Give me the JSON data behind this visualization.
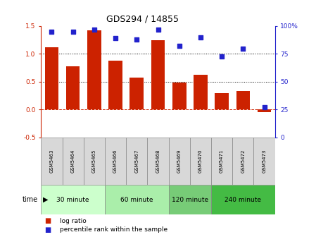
{
  "title": "GDS294 / 14855",
  "samples": [
    "GSM5463",
    "GSM5464",
    "GSM5465",
    "GSM5466",
    "GSM5467",
    "GSM5468",
    "GSM5469",
    "GSM5470",
    "GSM5471",
    "GSM5472",
    "GSM5473"
  ],
  "log_ratio": [
    1.12,
    0.78,
    1.42,
    0.88,
    0.58,
    1.25,
    0.48,
    0.62,
    0.3,
    0.33,
    -0.04
  ],
  "percentile": [
    95,
    95,
    97,
    89,
    88,
    97,
    82,
    90,
    73,
    80,
    27
  ],
  "bar_color": "#cc2200",
  "dot_color": "#2222cc",
  "ylim_left": [
    -0.5,
    1.5
  ],
  "ylim_right": [
    0,
    100
  ],
  "yticks_left": [
    -0.5,
    0.0,
    0.5,
    1.0,
    1.5
  ],
  "yticks_right": [
    0,
    25,
    50,
    75,
    100
  ],
  "ytick_labels_right": [
    "0",
    "25",
    "50",
    "75",
    "100%"
  ],
  "hlines": [
    0.5,
    1.0
  ],
  "zero_line_color": "#cc2200",
  "groups": [
    {
      "label": "30 minute",
      "start": 0,
      "end": 3,
      "color": "#ccffcc"
    },
    {
      "label": "60 minute",
      "start": 3,
      "end": 6,
      "color": "#aaeeaa"
    },
    {
      "label": "120 minute",
      "start": 6,
      "end": 8,
      "color": "#77cc77"
    },
    {
      "label": "240 minute",
      "start": 8,
      "end": 11,
      "color": "#44bb44"
    }
  ],
  "time_label": "time",
  "legend_bar_label": "log ratio",
  "legend_dot_label": "percentile rank within the sample",
  "bg_color": "#ffffff",
  "tick_area_color": "#d8d8d8"
}
